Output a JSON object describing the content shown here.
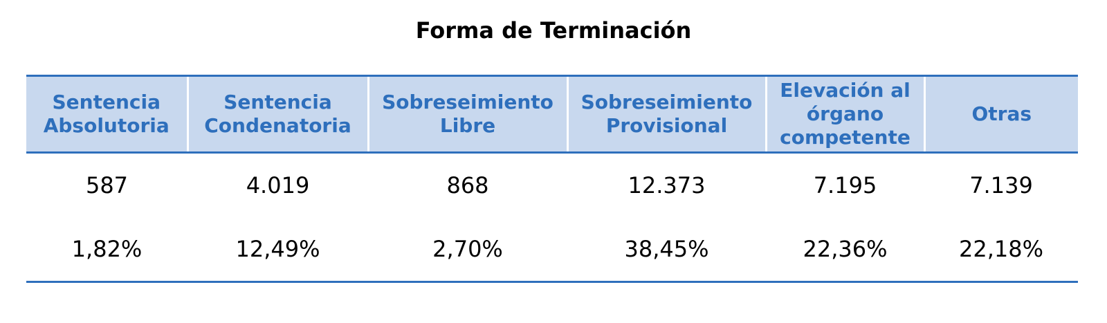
{
  "title": "Forma de Terminación",
  "headers": [
    "Sentencia Absolutoria",
    "Sentencia Condenatoria",
    "Sobreseimiento Libre",
    "Sobreseimiento Provisional",
    "Elevación al órgano competente",
    "Otras"
  ],
  "counts": [
    "587",
    "4.019",
    "868",
    "12.373",
    "7.195",
    "7.139"
  ],
  "percentages": [
    "1,82%",
    "12,49%",
    "2,70%",
    "38,45%",
    "22,36%",
    "22,18%"
  ],
  "colors": {
    "header_text": "#2e6fbc",
    "header_background": "#c8d8ee",
    "rule": "#2e6fbc"
  }
}
